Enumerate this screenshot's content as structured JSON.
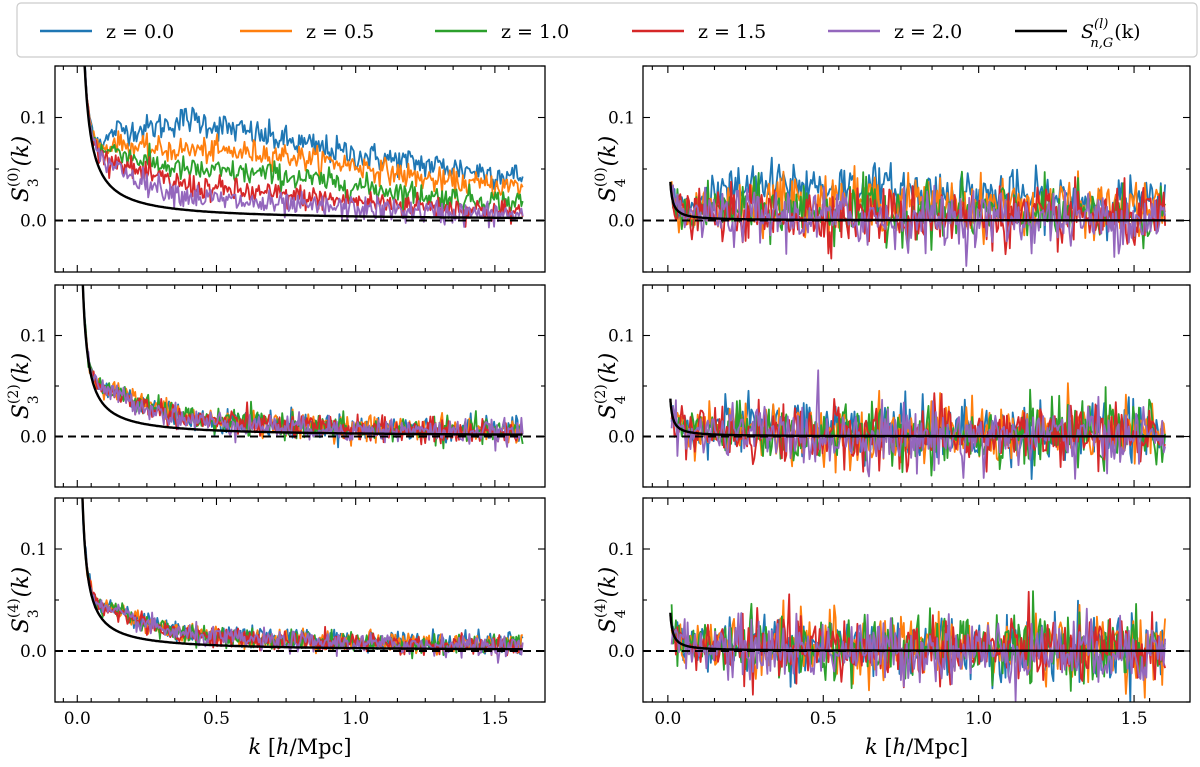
{
  "legend": {
    "entries": [
      {
        "label": "z = 0.0",
        "color": "#1f77b4"
      },
      {
        "label": "z = 0.5",
        "color": "#ff7f0e"
      },
      {
        "label": "z = 1.0",
        "color": "#2ca02c"
      },
      {
        "label": "z = 1.5",
        "color": "#d62728"
      },
      {
        "label": "z = 2.0",
        "color": "#9467bd"
      },
      {
        "label": "S_{n,G}^{(l)}(k)",
        "color": "#000000"
      }
    ]
  },
  "chart_data": [
    {
      "type": "line",
      "id": "S3_0",
      "ylabel": "S_3^{(0)}(k)",
      "ylabel_base": "S",
      "ylabel_sub": "3",
      "ylabel_sup": "(0)",
      "ylabel_tail": "(k)",
      "xlim": [
        -0.08,
        1.68
      ],
      "ylim": [
        -0.05,
        0.15
      ],
      "xticks": [
        0.0,
        0.5,
        1.0,
        1.5
      ],
      "xticklabels": [
        "0.0",
        "0.5",
        "1.0",
        "1.5"
      ],
      "yticks": [
        0.0,
        0.1
      ],
      "yticklabels": [
        "0.0",
        "0.1"
      ],
      "show_xticklabels": false,
      "gaussian_amp": 0.004,
      "series": [
        {
          "name": "z = 0.0",
          "color": "#1f77b4",
          "x": [
            0.1,
            0.4,
            0.7,
            1.0,
            1.3,
            1.6
          ],
          "y": [
            0.06,
            0.09,
            0.075,
            0.06,
            0.05,
            0.04
          ],
          "noise": 0.007
        },
        {
          "name": "z = 0.5",
          "color": "#ff7f0e",
          "x": [
            0.1,
            0.4,
            0.7,
            1.0,
            1.3,
            1.6
          ],
          "y": [
            0.05,
            0.06,
            0.06,
            0.05,
            0.035,
            0.03
          ],
          "noise": 0.006
        },
        {
          "name": "z = 1.0",
          "color": "#2ca02c",
          "x": [
            0.1,
            0.4,
            0.7,
            1.0,
            1.3,
            1.6
          ],
          "y": [
            0.045,
            0.04,
            0.04,
            0.03,
            0.02,
            0.015
          ],
          "noise": 0.006
        },
        {
          "name": "z = 1.5",
          "color": "#d62728",
          "x": [
            0.1,
            0.4,
            0.7,
            1.0,
            1.3,
            1.6
          ],
          "y": [
            0.035,
            0.025,
            0.02,
            0.015,
            0.01,
            0.005
          ],
          "noise": 0.006
        },
        {
          "name": "z = 2.0",
          "color": "#9467bd",
          "x": [
            0.1,
            0.4,
            0.7,
            1.0,
            1.3,
            1.6
          ],
          "y": [
            0.03,
            0.015,
            0.01,
            0.008,
            0.005,
            0.003
          ],
          "noise": 0.006
        }
      ]
    },
    {
      "type": "line",
      "id": "S4_0",
      "ylabel": "S_4^{(0)}(k)",
      "ylabel_base": "S",
      "ylabel_sub": "4",
      "ylabel_sup": "(0)",
      "ylabel_tail": "(k)",
      "xlim": [
        -0.08,
        1.68
      ],
      "ylim": [
        -0.05,
        0.15
      ],
      "xticks": [
        0.0,
        0.5,
        1.0,
        1.5
      ],
      "xticklabels": [
        "0.0",
        "0.5",
        "1.0",
        "1.5"
      ],
      "yticks": [
        0.0,
        0.1
      ],
      "yticklabels": [
        "0.0",
        "0.1"
      ],
      "show_xticklabels": false,
      "gaussian_amp": 0.0003,
      "series": [
        {
          "name": "z = 0.0",
          "color": "#1f77b4",
          "x": [
            0.1,
            0.4,
            0.7,
            1.0,
            1.3,
            1.6
          ],
          "y": [
            0.025,
            0.035,
            0.03,
            0.025,
            0.02,
            0.015
          ],
          "noise": 0.012
        },
        {
          "name": "z = 0.5",
          "color": "#ff7f0e",
          "x": [
            0.1,
            0.4,
            0.7,
            1.0,
            1.3,
            1.6
          ],
          "y": [
            0.015,
            0.02,
            0.018,
            0.015,
            0.012,
            0.01
          ],
          "noise": 0.013
        },
        {
          "name": "z = 1.0",
          "color": "#2ca02c",
          "x": [
            0.1,
            0.4,
            0.7,
            1.0,
            1.3,
            1.6
          ],
          "y": [
            0.008,
            0.01,
            0.008,
            0.006,
            0.005,
            0.004
          ],
          "noise": 0.014
        },
        {
          "name": "z = 1.5",
          "color": "#d62728",
          "x": [
            0.1,
            0.4,
            0.7,
            1.0,
            1.3,
            1.6
          ],
          "y": [
            0.004,
            0.005,
            0.004,
            0.003,
            0.002,
            0.002
          ],
          "noise": 0.014
        },
        {
          "name": "z = 2.0",
          "color": "#9467bd",
          "x": [
            0.1,
            0.4,
            0.7,
            1.0,
            1.3,
            1.6
          ],
          "y": [
            0.002,
            0.003,
            0.002,
            0.002,
            0.001,
            0.001
          ],
          "noise": 0.014
        }
      ]
    },
    {
      "type": "line",
      "id": "S3_2",
      "ylabel": "S_3^{(2)}(k)",
      "ylabel_base": "S",
      "ylabel_sub": "3",
      "ylabel_sup": "(2)",
      "ylabel_tail": "(k)",
      "xlim": [
        -0.08,
        1.68
      ],
      "ylim": [
        -0.05,
        0.15
      ],
      "xticks": [
        0.0,
        0.5,
        1.0,
        1.5
      ],
      "xticklabels": [
        "0.0",
        "0.5",
        "1.0",
        "1.5"
      ],
      "yticks": [
        0.0,
        0.1
      ],
      "yticklabels": [
        "0.0",
        "0.1"
      ],
      "show_xticklabels": false,
      "gaussian_amp": 0.003,
      "series": [
        {
          "name": "z = 0.0",
          "color": "#1f77b4",
          "x": [
            0.1,
            0.4,
            0.7,
            1.0,
            1.3,
            1.6
          ],
          "y": [
            0.03,
            0.012,
            0.009,
            0.006,
            0.005,
            0.004
          ],
          "noise": 0.006
        },
        {
          "name": "z = 0.5",
          "color": "#ff7f0e",
          "x": [
            0.1,
            0.4,
            0.7,
            1.0,
            1.3,
            1.6
          ],
          "y": [
            0.03,
            0.012,
            0.008,
            0.006,
            0.005,
            0.004
          ],
          "noise": 0.006
        },
        {
          "name": "z = 1.0",
          "color": "#2ca02c",
          "x": [
            0.1,
            0.4,
            0.7,
            1.0,
            1.3,
            1.6
          ],
          "y": [
            0.028,
            0.011,
            0.008,
            0.005,
            0.004,
            0.003
          ],
          "noise": 0.006
        },
        {
          "name": "z = 1.5",
          "color": "#d62728",
          "x": [
            0.1,
            0.4,
            0.7,
            1.0,
            1.3,
            1.6
          ],
          "y": [
            0.027,
            0.01,
            0.007,
            0.005,
            0.003,
            0.002
          ],
          "noise": 0.006
        },
        {
          "name": "z = 2.0",
          "color": "#9467bd",
          "x": [
            0.1,
            0.4,
            0.7,
            1.0,
            1.3,
            1.6
          ],
          "y": [
            0.026,
            0.01,
            0.006,
            0.004,
            0.003,
            0.002
          ],
          "noise": 0.006
        }
      ]
    },
    {
      "type": "line",
      "id": "S4_2",
      "ylabel": "S_4^{(2)}(k)",
      "ylabel_base": "S",
      "ylabel_sub": "4",
      "ylabel_sup": "(2)",
      "ylabel_tail": "(k)",
      "xlim": [
        -0.08,
        1.68
      ],
      "ylim": [
        -0.05,
        0.15
      ],
      "xticks": [
        0.0,
        0.5,
        1.0,
        1.5
      ],
      "xticklabels": [
        "0.0",
        "0.5",
        "1.0",
        "1.5"
      ],
      "yticks": [
        0.0,
        0.1
      ],
      "yticklabels": [
        "0.0",
        "0.1"
      ],
      "show_xticklabels": false,
      "gaussian_amp": 0.0003,
      "series": [
        {
          "name": "z = 0.0",
          "color": "#1f77b4",
          "x": [
            0.1,
            0.4,
            0.7,
            1.0,
            1.3,
            1.6
          ],
          "y": [
            0.01,
            0.008,
            0.006,
            0.005,
            0.004,
            0.004
          ],
          "noise": 0.015
        },
        {
          "name": "z = 0.5",
          "color": "#ff7f0e",
          "x": [
            0.1,
            0.4,
            0.7,
            1.0,
            1.3,
            1.6
          ],
          "y": [
            0.006,
            0.005,
            0.004,
            0.003,
            0.003,
            0.002
          ],
          "noise": 0.015
        },
        {
          "name": "z = 1.0",
          "color": "#2ca02c",
          "x": [
            0.1,
            0.4,
            0.7,
            1.0,
            1.3,
            1.6
          ],
          "y": [
            0.004,
            0.003,
            0.002,
            0.002,
            0.001,
            0.001
          ],
          "noise": 0.015
        },
        {
          "name": "z = 1.5",
          "color": "#d62728",
          "x": [
            0.1,
            0.4,
            0.7,
            1.0,
            1.3,
            1.6
          ],
          "y": [
            0.002,
            0.002,
            0.001,
            0.001,
            0.0,
            0.0
          ],
          "noise": 0.015
        },
        {
          "name": "z = 2.0",
          "color": "#9467bd",
          "x": [
            0.1,
            0.4,
            0.7,
            1.0,
            1.3,
            1.6
          ],
          "y": [
            0.001,
            0.001,
            0.0,
            0.0,
            0.0,
            0.0
          ],
          "noise": 0.015
        }
      ]
    },
    {
      "type": "line",
      "id": "S3_4",
      "ylabel": "S_3^{(4)}(k)",
      "ylabel_base": "S",
      "ylabel_sub": "3",
      "ylabel_sup": "(4)",
      "ylabel_tail": "(k)",
      "xlim": [
        -0.08,
        1.68
      ],
      "ylim": [
        -0.05,
        0.15
      ],
      "xticks": [
        0.0,
        0.5,
        1.0,
        1.5
      ],
      "xticklabels": [
        "0.0",
        "0.5",
        "1.0",
        "1.5"
      ],
      "yticks": [
        0.0,
        0.1
      ],
      "yticklabels": [
        "0.0",
        "0.1"
      ],
      "show_xticklabels": true,
      "xlabel": "k [h/Mpc]",
      "gaussian_amp": 0.0028,
      "series": [
        {
          "name": "z = 0.0",
          "color": "#1f77b4",
          "x": [
            0.1,
            0.4,
            0.7,
            1.0,
            1.3,
            1.6
          ],
          "y": [
            0.025,
            0.012,
            0.009,
            0.008,
            0.007,
            0.006
          ],
          "noise": 0.005
        },
        {
          "name": "z = 0.5",
          "color": "#ff7f0e",
          "x": [
            0.1,
            0.4,
            0.7,
            1.0,
            1.3,
            1.6
          ],
          "y": [
            0.024,
            0.011,
            0.008,
            0.007,
            0.006,
            0.005
          ],
          "noise": 0.005
        },
        {
          "name": "z = 1.0",
          "color": "#2ca02c",
          "x": [
            0.1,
            0.4,
            0.7,
            1.0,
            1.3,
            1.6
          ],
          "y": [
            0.024,
            0.01,
            0.007,
            0.006,
            0.005,
            0.004
          ],
          "noise": 0.005
        },
        {
          "name": "z = 1.5",
          "color": "#d62728",
          "x": [
            0.1,
            0.4,
            0.7,
            1.0,
            1.3,
            1.6
          ],
          "y": [
            0.023,
            0.01,
            0.007,
            0.005,
            0.004,
            0.003
          ],
          "noise": 0.005
        },
        {
          "name": "z = 2.0",
          "color": "#9467bd",
          "x": [
            0.1,
            0.4,
            0.7,
            1.0,
            1.3,
            1.6
          ],
          "y": [
            0.022,
            0.009,
            0.006,
            0.005,
            0.004,
            0.003
          ],
          "noise": 0.005
        }
      ]
    },
    {
      "type": "line",
      "id": "S4_4",
      "ylabel": "S_4^{(4)}(k)",
      "ylabel_base": "S",
      "ylabel_sub": "4",
      "ylabel_sup": "(4)",
      "ylabel_tail": "(k)",
      "xlim": [
        -0.08,
        1.68
      ],
      "ylim": [
        -0.05,
        0.15
      ],
      "xticks": [
        0.0,
        0.5,
        1.0,
        1.5
      ],
      "xticklabels": [
        "0.0",
        "0.5",
        "1.0",
        "1.5"
      ],
      "yticks": [
        0.0,
        0.1
      ],
      "yticklabels": [
        "0.0",
        "0.1"
      ],
      "show_xticklabels": true,
      "xlabel": "k [h/Mpc]",
      "gaussian_amp": 0.0003,
      "series": [
        {
          "name": "z = 0.0",
          "color": "#1f77b4",
          "x": [
            0.1,
            0.4,
            0.7,
            1.0,
            1.3,
            1.6
          ],
          "y": [
            0.008,
            0.006,
            0.005,
            0.004,
            0.004,
            0.003
          ],
          "noise": 0.016
        },
        {
          "name": "z = 0.5",
          "color": "#ff7f0e",
          "x": [
            0.1,
            0.4,
            0.7,
            1.0,
            1.3,
            1.6
          ],
          "y": [
            0.006,
            0.005,
            0.004,
            0.003,
            0.003,
            0.002
          ],
          "noise": 0.016
        },
        {
          "name": "z = 1.0",
          "color": "#2ca02c",
          "x": [
            0.1,
            0.4,
            0.7,
            1.0,
            1.3,
            1.6
          ],
          "y": [
            0.004,
            0.003,
            0.002,
            0.002,
            0.001,
            0.001
          ],
          "noise": 0.016
        },
        {
          "name": "z = 1.5",
          "color": "#d62728",
          "x": [
            0.1,
            0.4,
            0.7,
            1.0,
            1.3,
            1.6
          ],
          "y": [
            0.002,
            0.002,
            0.001,
            0.001,
            0.0,
            0.0
          ],
          "noise": 0.016
        },
        {
          "name": "z = 2.0",
          "color": "#9467bd",
          "x": [
            0.1,
            0.4,
            0.7,
            1.0,
            1.3,
            1.6
          ],
          "y": [
            0.001,
            0.001,
            0.0,
            0.0,
            0.0,
            0.0
          ],
          "noise": 0.016
        }
      ]
    }
  ]
}
